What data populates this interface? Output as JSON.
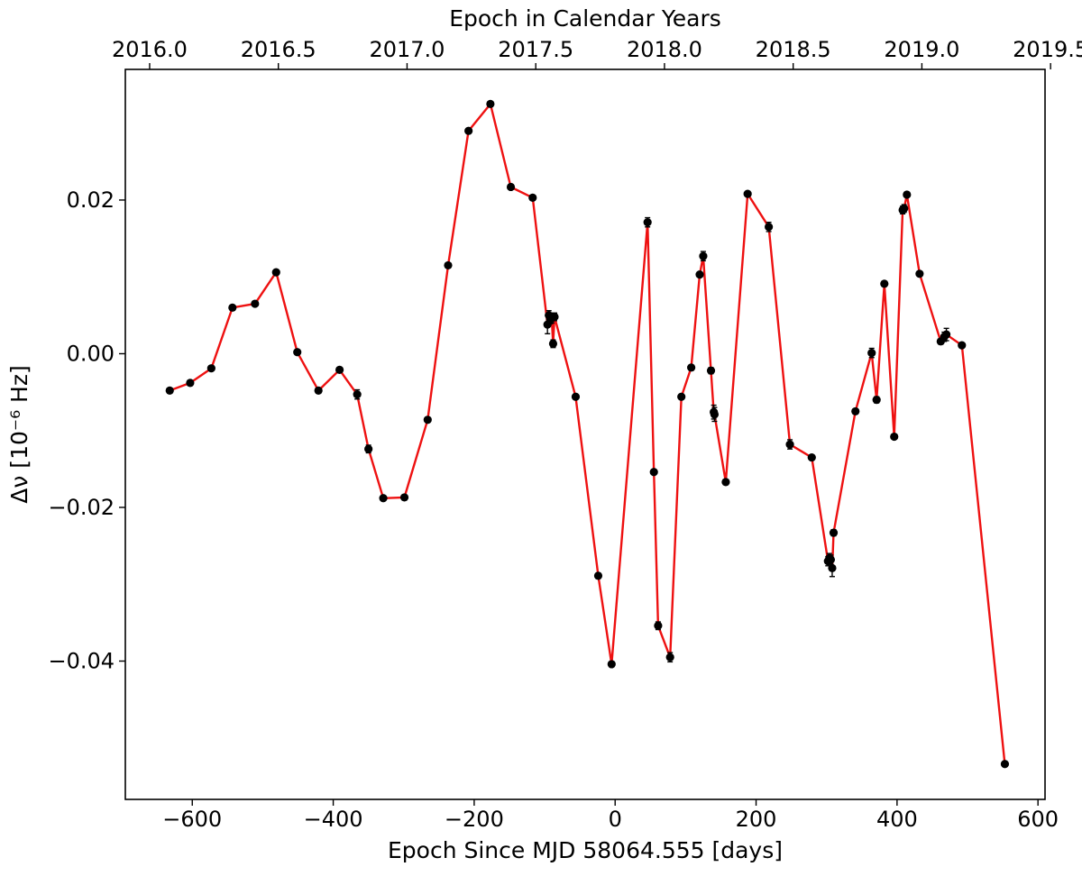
{
  "chart_data": {
    "type": "line",
    "xlabel": "Epoch Since MJD 58064.555 [days]",
    "ylabel": "Δν [10⁻⁶ Hz]",
    "top_xlabel": "Epoch in Calendar Years",
    "xlim": [
      -695,
      610
    ],
    "ylim": [
      -0.058,
      0.037
    ],
    "xticks": [
      -600,
      -400,
      -200,
      0,
      200,
      400,
      600
    ],
    "xtick_labels": [
      "−600",
      "−400",
      "−200",
      "0",
      "200",
      "400",
      "600"
    ],
    "yticks": [
      -0.04,
      -0.02,
      0.0,
      0.02
    ],
    "ytick_labels": [
      "−0.04",
      "−0.02",
      "0.00",
      "0.02"
    ],
    "top_xticks": [
      2016.0,
      2016.5,
      2017.0,
      2017.5,
      2018.0,
      2018.5,
      2019.0,
      2019.5
    ],
    "top_xtick_labels": [
      "2016.0",
      "2016.5",
      "2017.0",
      "2017.5",
      "2018.0",
      "2018.5",
      "2019.0",
      "2019.5"
    ],
    "top_axis_reference": {
      "x_days_at_2016_0": -660.5,
      "days_per_year": 365.25
    },
    "grid": false,
    "line_color": "#ee1111",
    "marker_color": "#000000",
    "series": [
      {
        "name": "",
        "x": [
          -632,
          -603,
          -573,
          -543,
          -511,
          -481,
          -451,
          -421,
          -391,
          -366,
          -350,
          -329,
          -299,
          -266,
          -237,
          -208,
          -177,
          -148,
          -117,
          -96,
          -94,
          -92,
          -90,
          -88,
          -86,
          -56,
          -24,
          -5,
          46,
          55,
          61,
          78,
          94,
          108,
          120,
          125,
          136,
          140,
          141,
          157,
          188,
          218,
          248,
          279,
          302,
          304,
          306,
          308,
          310,
          341,
          364,
          371,
          382,
          396,
          408,
          410,
          414,
          432,
          462,
          467,
          470,
          492,
          553
        ],
        "y": [
          -0.0048,
          -0.0038,
          -0.0019,
          0.006,
          0.0065,
          0.0106,
          0.0002,
          -0.0048,
          -0.0021,
          -0.0053,
          -0.0124,
          -0.0188,
          -0.0187,
          -0.0086,
          0.0115,
          0.029,
          0.0325,
          0.0217,
          0.0203,
          0.0038,
          0.005,
          0.0045,
          0.0046,
          0.0013,
          0.0048,
          -0.0056,
          -0.0289,
          -0.0404,
          0.0171,
          -0.0154,
          -0.0354,
          -0.0395,
          -0.0056,
          -0.0018,
          0.0103,
          0.0127,
          -0.0022,
          -0.0076,
          -0.0079,
          -0.0167,
          0.0208,
          0.0165,
          -0.0118,
          -0.0135,
          -0.027,
          -0.0266,
          -0.0268,
          -0.0279,
          -0.0233,
          -0.0075,
          0.0001,
          -0.006,
          0.0091,
          -0.0108,
          0.0187,
          0.0189,
          0.0207,
          0.0104,
          0.0016,
          0.0022,
          0.0025,
          0.0011,
          -0.0534
        ],
        "yerr": [
          0.0003,
          0.0003,
          0.0003,
          0.0003,
          0.0003,
          0.0003,
          0.0003,
          0.0003,
          0.0003,
          0.0006,
          0.0005,
          0.0003,
          0.0003,
          0.0003,
          0.0003,
          0.0003,
          0.0003,
          0.0003,
          0.0003,
          0.0012,
          0.0006,
          0.0006,
          0.0006,
          0.0005,
          0.0005,
          0.0003,
          0.0003,
          0.0003,
          0.0006,
          0.0003,
          0.0005,
          0.0006,
          0.0003,
          0.0003,
          0.0003,
          0.0006,
          0.0004,
          0.0009,
          0.0009,
          0.0003,
          0.0003,
          0.0006,
          0.0006,
          0.0003,
          0.0006,
          0.0006,
          0.0006,
          0.0011,
          0.0004,
          0.0003,
          0.0006,
          0.0004,
          0.0003,
          0.0003,
          0.0005,
          0.0005,
          0.0003,
          0.0003,
          0.0003,
          0.0006,
          0.0008,
          0.0003,
          0.0003
        ]
      }
    ]
  }
}
